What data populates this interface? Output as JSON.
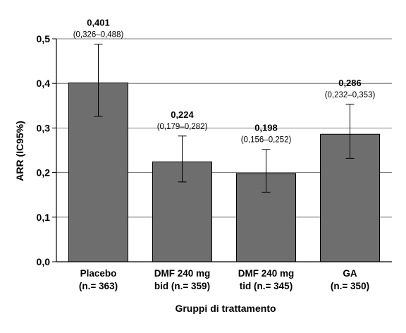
{
  "chart_data": {
    "type": "bar",
    "categories": [
      [
        "Placebo",
        "(n.= 363)"
      ],
      [
        "DMF 240 mg",
        "bid (n.= 359)"
      ],
      [
        "DMF 240 mg",
        "tid (n.= 345)"
      ],
      [
        "GA",
        "(n.= 350)"
      ]
    ],
    "values": [
      0.401,
      0.224,
      0.198,
      0.286
    ],
    "value_labels": [
      "0,401",
      "0,224",
      "0,198",
      "0,286"
    ],
    "ci_low": [
      0.326,
      0.179,
      0.156,
      0.232
    ],
    "ci_high": [
      0.488,
      0.282,
      0.252,
      0.353
    ],
    "ci_labels": [
      "(0,326–0,488)",
      "(0,179–0,282)",
      "(0,156–0,252)",
      "(0,232–0,353)"
    ],
    "xlabel": "Gruppi di trattamento",
    "ylabel": "ARR (IC95%)",
    "ylim": [
      0,
      0.5
    ],
    "yticks": [
      0,
      0.1,
      0.2,
      0.3,
      0.4,
      0.5
    ],
    "ytick_labels": [
      "0,0",
      "0,1",
      "0,2",
      "0,3",
      "0,4",
      "0,5"
    ],
    "grid": true,
    "bar_color": "#6e6e6e",
    "grid_color": "#555555"
  }
}
